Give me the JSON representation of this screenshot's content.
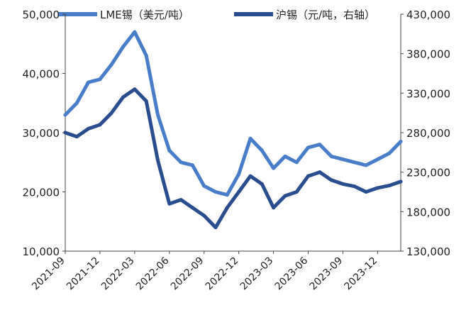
{
  "chart_data": {
    "type": "line",
    "title": "",
    "xlabel": "",
    "ylabel": "",
    "x_ticks": [
      "2021-09",
      "2021-12",
      "2022-03",
      "2022-06",
      "2022-09",
      "2022-12",
      "2023-03",
      "2023-06",
      "2023-09",
      "2023-12"
    ],
    "x_range": [
      "2021-09",
      "2024-02"
    ],
    "y_left": {
      "ylim": [
        10000,
        50000
      ],
      "ticks": [
        "10,000",
        "20,000",
        "30,000",
        "40,000",
        "50,000"
      ],
      "tick_values": [
        10000,
        20000,
        30000,
        40000,
        50000
      ]
    },
    "y_right": {
      "ylim": [
        130000,
        430000
      ],
      "ticks": [
        "130,000",
        "180,000",
        "230,000",
        "280,000",
        "330,000",
        "380,000",
        "430,000"
      ],
      "tick_values": [
        130000,
        180000,
        230000,
        280000,
        330000,
        380000,
        430000
      ]
    },
    "legend_position": "top",
    "grid": false,
    "series": [
      {
        "name": "LME锡（美元/吨）",
        "axis": "left",
        "color": "#4a7dc9",
        "x": [
          "2021-09",
          "2021-10",
          "2021-11",
          "2021-12",
          "2022-01",
          "2022-02",
          "2022-03",
          "2022-04",
          "2022-05",
          "2022-06",
          "2022-07",
          "2022-08",
          "2022-09",
          "2022-10",
          "2022-11",
          "2022-12",
          "2023-01",
          "2023-02",
          "2023-03",
          "2023-04",
          "2023-05",
          "2023-06",
          "2023-07",
          "2023-08",
          "2023-09",
          "2023-10",
          "2023-11",
          "2023-12",
          "2024-01",
          "2024-02"
        ],
        "values": [
          33000,
          35000,
          38500,
          39000,
          41500,
          44500,
          47000,
          43000,
          33000,
          27000,
          25000,
          24500,
          21000,
          20000,
          19500,
          23000,
          29000,
          27000,
          24000,
          26000,
          25000,
          27500,
          28000,
          26000,
          25500,
          25000,
          24500,
          25500,
          26500,
          28500
        ]
      },
      {
        "name": "沪锡（元/吨，右轴）",
        "axis": "right",
        "color": "#2a4d8f",
        "x": [
          "2021-09",
          "2021-10",
          "2021-11",
          "2021-12",
          "2022-01",
          "2022-02",
          "2022-03",
          "2022-04",
          "2022-05",
          "2022-06",
          "2022-07",
          "2022-08",
          "2022-09",
          "2022-10",
          "2022-11",
          "2022-12",
          "2023-01",
          "2023-02",
          "2023-03",
          "2023-04",
          "2023-05",
          "2023-06",
          "2023-07",
          "2023-08",
          "2023-09",
          "2023-10",
          "2023-11",
          "2023-12",
          "2024-01",
          "2024-02"
        ],
        "values": [
          280000,
          275000,
          285000,
          290000,
          305000,
          325000,
          335000,
          320000,
          245000,
          190000,
          195000,
          185000,
          175000,
          160000,
          185000,
          205000,
          225000,
          215000,
          185000,
          200000,
          205000,
          225000,
          230000,
          220000,
          215000,
          212000,
          205000,
          210000,
          213000,
          218000
        ]
      }
    ]
  }
}
